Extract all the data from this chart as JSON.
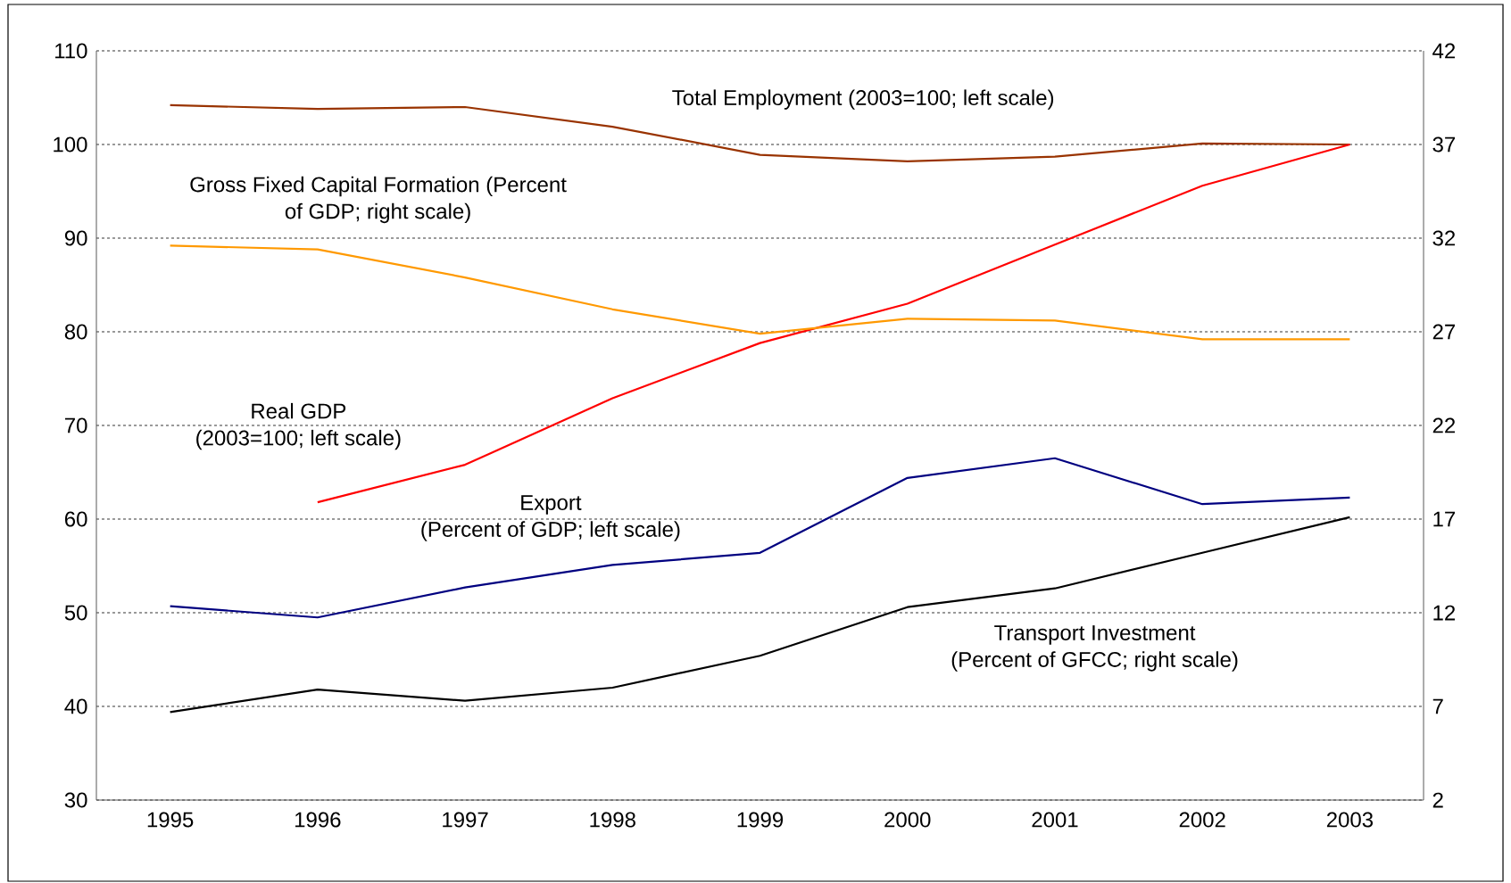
{
  "chart_data": {
    "type": "line",
    "categories": [
      "1995",
      "1996",
      "1997",
      "1998",
      "1999",
      "2000",
      "2001",
      "2002",
      "2003"
    ],
    "ylim": [
      30,
      110
    ],
    "yticks": [
      30,
      40,
      50,
      60,
      70,
      80,
      90,
      100,
      110
    ],
    "y2lim": [
      2,
      42
    ],
    "y2ticks": [
      2,
      7,
      12,
      17,
      22,
      27,
      32,
      37,
      42
    ],
    "grid": "y",
    "marker": "none",
    "line_style": "solid",
    "series": [
      {
        "name": "Total Employment (2003=100; left scale)",
        "color": "#993300",
        "values": [
          104.2,
          103.8,
          104.0,
          101.9,
          98.9,
          98.2,
          98.7,
          100.1,
          100
        ]
      },
      {
        "name": "Gross Fixed Capital Formation (Percent of GDP; right scale)",
        "color": "#ff9900",
        "axis": "y2",
        "values": [
          31.6,
          31.4,
          29.9,
          28.2,
          26.9,
          27.7,
          27.6,
          26.6,
          26.6
        ]
      },
      {
        "name": "Real GDP (2003=100; left scale)",
        "color": "#ff0000",
        "values": [
          null,
          61.8,
          65.8,
          72.9,
          78.8,
          83.0,
          89.3,
          95.6,
          100
        ]
      },
      {
        "name": "Export (Percent of GDP; left scale)",
        "color": "#000080",
        "values": [
          50.7,
          49.5,
          52.7,
          55.1,
          56.4,
          64.4,
          66.5,
          61.6,
          62.3
        ]
      },
      {
        "name": "Transport Investment (Percent of GFCC; right scale)",
        "color": "#000000",
        "axis": "y2",
        "values": [
          6.7,
          7.9,
          7.3,
          8.0,
          9.7,
          12.3,
          13.3,
          15.2,
          17.1
        ]
      }
    ]
  }
}
